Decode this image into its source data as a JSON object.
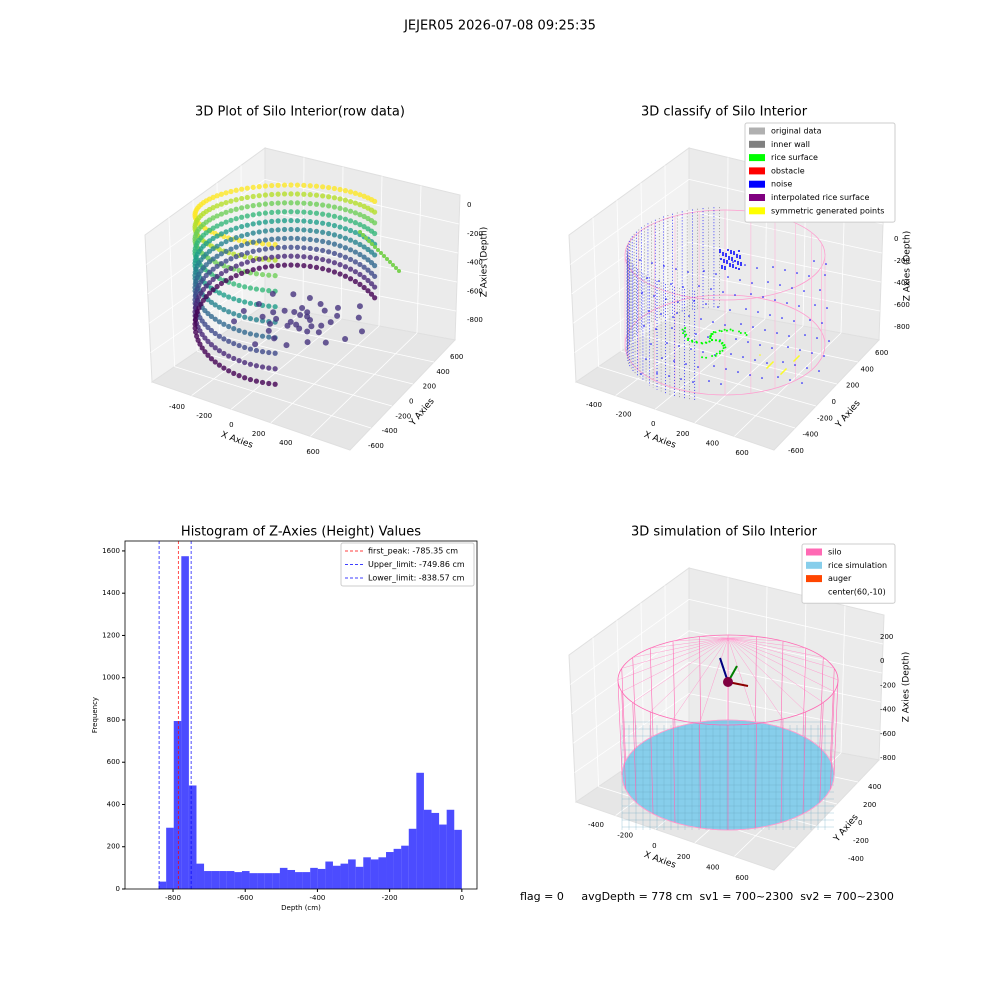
{
  "suptitle": "JEJER05 2026-07-08 09:25:35",
  "plot_raw": {
    "title": "3D Plot of Silo Interior(row data)",
    "xlabel": "X Axies",
    "ylabel": "Y Axies",
    "zlabel": "Z Axies (Depth)",
    "xticks": [
      -400,
      -200,
      0,
      200,
      400,
      600
    ],
    "yticks": [
      -600,
      -400,
      -200,
      0,
      200,
      400,
      600
    ],
    "zticks": [
      0,
      -200,
      -400,
      -600,
      -800
    ]
  },
  "plot_classify": {
    "title": "3D classify of Silo Interior",
    "xlabel": "X Axies",
    "ylabel": "Y Axies",
    "zlabel": "Z Axies (Depth)",
    "xticks": [
      -400,
      -200,
      0,
      200,
      400,
      600
    ],
    "yticks": [
      -600,
      -400,
      -200,
      0,
      200,
      400,
      600
    ],
    "zticks": [
      0,
      -200,
      -400,
      -600,
      -800
    ],
    "legend": [
      {
        "name": "original data",
        "color": "#b0b0b0"
      },
      {
        "name": "inner wall",
        "color": "#808080"
      },
      {
        "name": "rice surface",
        "color": "#00ff00"
      },
      {
        "name": "obstacle",
        "color": "#ff0000"
      },
      {
        "name": "noise",
        "color": "#0000ff"
      },
      {
        "name": "interpolated rice surface",
        "color": "#800080"
      },
      {
        "name": "symmetric generated points",
        "color": "#ffff00"
      }
    ]
  },
  "plot_sim": {
    "title": "3D simulation of Silo Interior",
    "xlabel": "X Axies",
    "ylabel": "Y Axies",
    "zlabel": "Z Axies (Depth)",
    "xticks": [
      -400,
      -200,
      0,
      200,
      400,
      600
    ],
    "yticks": [
      -400,
      -200,
      0,
      200,
      400
    ],
    "zticks": [
      200,
      0,
      -200,
      -400,
      -600,
      -800
    ],
    "legend": [
      {
        "name": "silo",
        "color": "#ff69b4"
      },
      {
        "name": "rice simulation",
        "color": "#87ceeb"
      },
      {
        "name": "auger",
        "color": "#ff4500"
      },
      {
        "name": "center(60,-10)",
        "color": "#ffffff"
      }
    ]
  },
  "chart_data": {
    "type": "histogram",
    "title": "Histogram of Z-Axies (Height) Values",
    "xlabel": "Depth (cm)",
    "ylabel": "Frequency",
    "color": "#0000ff",
    "bins": [
      -840,
      -819,
      -798,
      -777,
      -756,
      -735,
      -714,
      -693,
      -672,
      -651,
      -630,
      -609,
      -588,
      -567,
      -546,
      -525,
      -504,
      -483,
      -462,
      -441,
      -420,
      -399,
      -378,
      -357,
      -336,
      -315,
      -294,
      -273,
      -252,
      -231,
      -210,
      -189,
      -168,
      -147,
      -126,
      -105,
      -84,
      -63,
      -42,
      -21,
      0
    ],
    "values": [
      35,
      290,
      795,
      1575,
      490,
      120,
      85,
      85,
      85,
      85,
      80,
      85,
      75,
      75,
      75,
      75,
      100,
      90,
      80,
      80,
      100,
      95,
      130,
      110,
      120,
      140,
      105,
      150,
      140,
      150,
      175,
      190,
      205,
      285,
      550,
      375,
      360,
      305,
      375,
      280
    ],
    "xlim": [
      -933,
      42
    ],
    "ylim": [
      0,
      1647
    ],
    "xticks": [
      -800,
      -600,
      -400,
      -200,
      0
    ],
    "yticks": [
      0,
      200,
      400,
      600,
      800,
      1000,
      1200,
      1400,
      1600
    ],
    "vlines": [
      {
        "label": "first_peak: -785.35 cm",
        "value": -785.35,
        "color": "#ff0000"
      },
      {
        "label": "Upper_limit: -749.86 cm",
        "value": -749.86,
        "color": "#0000ff"
      },
      {
        "label": "Lower_limit: -838.57 cm",
        "value": -838.57,
        "color": "#0000ff"
      }
    ]
  },
  "status": "flag = 0     avgDepth = 778 cm  sv1 = 700~2300  sv2 = 700~2300"
}
